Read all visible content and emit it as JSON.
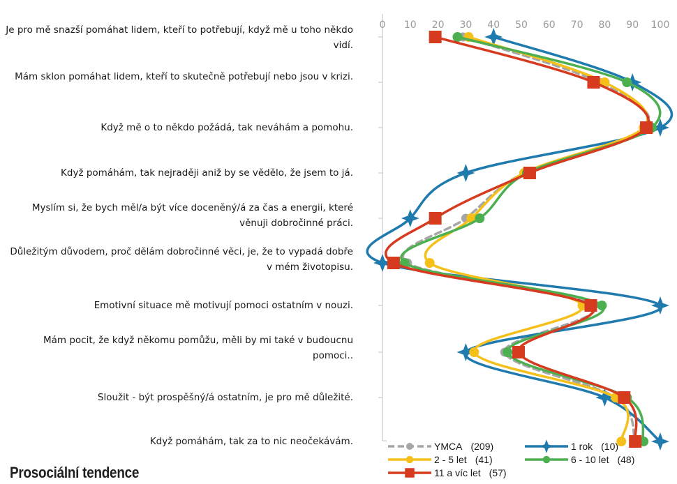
{
  "title": "Prosociální tendence",
  "chart_data": {
    "type": "line",
    "orientation": "horizontal",
    "xlim": [
      0,
      100
    ],
    "xticks": [
      0,
      10,
      20,
      30,
      40,
      50,
      60,
      70,
      80,
      90,
      100
    ],
    "categories": [
      "Je pro mě snazší pomáhat lidem, kteří to potřebují, když mě u toho někdo vidí.",
      "Mám sklon pomáhat lidem, kteří to skutečně potřebují nebo jsou v krizi.",
      "Když mě o to někdo požádá, tak neváhám a pomohu.",
      "Když pomáhám, tak nejraději aniž by se vědělo, že jsem to já.",
      "Myslím si, že bych měl/a být více doceněný/á za čas a energii, které věnuji dobročinné práci.",
      "Důležitým důvodem, proč dělám dobročinné věci, je, že to vypadá dobře v mém životopisu.",
      "Emotivní situace mě motivují pomoci ostatním v nouzi.",
      "Mám pocit, že když někomu pomůžu, měli by mi také v budoucnu pomoci..",
      "Sloužit - být prospěšný/á ostatním, je pro mě důležité.",
      "Když pomáhám, tak za to nic neočekávám."
    ],
    "grid": false,
    "legend_position": "bottom",
    "series": [
      {
        "name": "YMCA",
        "n": "(209)",
        "color": "#a6a6a6",
        "marker": "none",
        "dashed": true,
        "values": [
          29,
          78,
          95,
          51,
          30,
          9,
          76,
          44,
          84,
          91
        ]
      },
      {
        "name": "1 rok",
        "n": "(10)",
        "color": "#1f7aad",
        "marker": "star",
        "dashed": false,
        "values": [
          40,
          90,
          100,
          30,
          10,
          0,
          100,
          30,
          80,
          100
        ]
      },
      {
        "name": "2 - 5 let",
        "n": "(41)",
        "color": "#f5c01a",
        "marker": "circle",
        "dashed": false,
        "values": [
          31,
          80,
          94,
          51,
          32,
          17,
          72,
          33,
          84,
          86
        ]
      },
      {
        "name": "6 - 10 let",
        "n": "(48)",
        "color": "#4caf50",
        "marker": "circle",
        "dashed": false,
        "values": [
          27,
          88,
          97,
          52,
          35,
          8,
          79,
          45,
          88,
          94
        ]
      },
      {
        "name": "11 a víc let",
        "n": "(57)",
        "color": "#d63a1f",
        "marker": "square",
        "dashed": false,
        "values": [
          19,
          76,
          95,
          53,
          19,
          4,
          75,
          49,
          87,
          91
        ]
      }
    ]
  }
}
